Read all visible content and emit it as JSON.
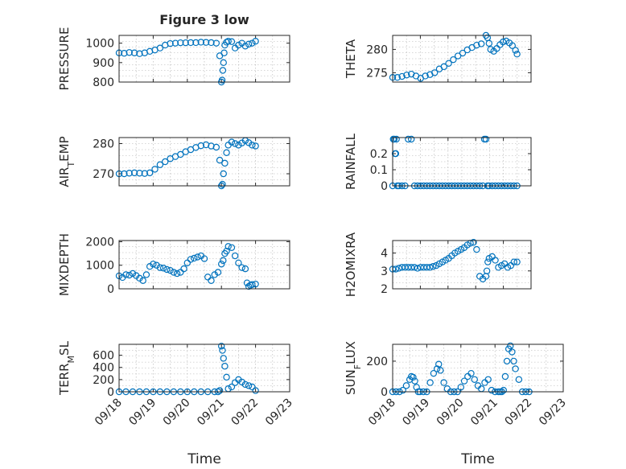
{
  "figure": {
    "title": "Figure 3 low",
    "marker_color": "#0072BD",
    "axes_color": "#262626"
  },
  "chart_data": [
    {
      "type": "scatter",
      "panel": 1,
      "ylabel": "PRESSURE",
      "ylim": [
        800,
        1040
      ],
      "yticks": [
        800,
        900,
        1000
      ],
      "ytick_labels": [
        "800",
        "900",
        "1000"
      ],
      "xlim": [
        0,
        5
      ],
      "grid": true,
      "x": [
        0.0,
        0.15,
        0.3,
        0.45,
        0.6,
        0.75,
        0.9,
        1.05,
        1.2,
        1.35,
        1.5,
        1.65,
        1.8,
        1.95,
        2.1,
        2.25,
        2.4,
        2.55,
        2.7,
        2.85,
        2.95,
        3.0,
        3.02,
        3.04,
        3.06,
        3.08,
        3.1,
        3.15,
        3.2,
        3.3,
        3.4,
        3.5,
        3.6,
        3.7,
        3.8,
        3.9,
        4.0
      ],
      "y": [
        950,
        948,
        952,
        950,
        946,
        950,
        958,
        965,
        975,
        990,
        998,
        1000,
        1002,
        1002,
        1003,
        1003,
        1005,
        1004,
        1003,
        1000,
        935,
        800,
        810,
        860,
        900,
        950,
        990,
        1005,
        1010,
        1008,
        975,
        990,
        1000,
        985,
        995,
        1000,
        1010
      ]
    },
    {
      "type": "scatter",
      "panel": 2,
      "ylabel": "THETA",
      "ylim": [
        273,
        283
      ],
      "yticks": [
        275,
        280
      ],
      "ytick_labels": [
        "275",
        "280"
      ],
      "xlim": [
        0,
        5
      ],
      "grid": true,
      "x": [
        0.0,
        0.15,
        0.3,
        0.45,
        0.6,
        0.75,
        0.9,
        1.05,
        1.2,
        1.35,
        1.5,
        1.65,
        1.8,
        1.95,
        2.1,
        2.25,
        2.4,
        2.55,
        2.7,
        2.85,
        3.0,
        3.05,
        3.1,
        3.15,
        3.25,
        3.35,
        3.45,
        3.55,
        3.65,
        3.75,
        3.85,
        3.95,
        4.0
      ],
      "y": [
        274.0,
        274.0,
        274.2,
        274.5,
        274.7,
        274.3,
        273.8,
        274.3,
        274.6,
        275.0,
        275.8,
        276.3,
        277.0,
        277.8,
        278.6,
        279.2,
        279.9,
        280.4,
        280.9,
        281.2,
        283.0,
        282.5,
        281.3,
        280.0,
        279.6,
        280.2,
        281.0,
        281.6,
        281.8,
        281.4,
        280.8,
        279.8,
        279.0
      ]
    },
    {
      "type": "scatter",
      "panel": 3,
      "ylabel": "AIR_TEMP",
      "ylim": [
        266,
        282
      ],
      "yticks": [
        270,
        280
      ],
      "ytick_labels": [
        "270",
        "280"
      ],
      "xlim": [
        0,
        5
      ],
      "grid": true,
      "x": [
        0.0,
        0.15,
        0.3,
        0.45,
        0.6,
        0.75,
        0.9,
        1.05,
        1.2,
        1.35,
        1.5,
        1.65,
        1.8,
        1.95,
        2.1,
        2.25,
        2.4,
        2.55,
        2.7,
        2.85,
        2.95,
        3.0,
        3.03,
        3.06,
        3.1,
        3.15,
        3.2,
        3.3,
        3.4,
        3.5,
        3.6,
        3.7,
        3.8,
        3.9,
        4.0
      ],
      "y": [
        270,
        270,
        270.2,
        270.3,
        270.2,
        270.1,
        270.3,
        271.5,
        273,
        274,
        275,
        275.7,
        276.4,
        277.3,
        278,
        278.7,
        279.3,
        279.6,
        279.2,
        278.8,
        274.5,
        266,
        266.5,
        270,
        273.5,
        277,
        279.5,
        280.5,
        280.0,
        279.5,
        280.2,
        281.0,
        280.3,
        279.5,
        279.2
      ]
    },
    {
      "type": "scatter",
      "panel": 4,
      "ylabel": "RAINFALL",
      "ylim": [
        0,
        0.3
      ],
      "yticks": [
        0,
        0.1,
        0.2
      ],
      "ytick_labels": [
        "0",
        "0.1",
        "0.2"
      ],
      "xlim": [
        0,
        5
      ],
      "grid": true,
      "x": [
        0.0,
        0.02,
        0.05,
        0.08,
        0.1,
        0.12,
        0.15,
        0.2,
        0.3,
        0.4,
        0.5,
        0.6,
        0.7,
        0.8,
        0.9,
        1.0,
        1.1,
        1.2,
        1.3,
        1.4,
        1.5,
        1.6,
        1.7,
        1.8,
        1.9,
        2.0,
        2.1,
        2.2,
        2.3,
        2.4,
        2.5,
        2.6,
        2.7,
        2.8,
        2.9,
        2.95,
        3.0,
        3.05,
        3.1,
        3.2,
        3.3,
        3.4,
        3.5,
        3.6,
        3.7,
        3.8,
        3.9,
        4.0
      ],
      "y": [
        0,
        0.29,
        0.29,
        0.2,
        0.2,
        0.29,
        0,
        0,
        0,
        0,
        0.29,
        0.29,
        0,
        0,
        0,
        0,
        0,
        0,
        0,
        0,
        0,
        0,
        0,
        0,
        0,
        0,
        0,
        0,
        0,
        0,
        0,
        0,
        0,
        0,
        0,
        0.29,
        0.29,
        0,
        0,
        0,
        0,
        0,
        0,
        0,
        0,
        0,
        0,
        0
      ]
    },
    {
      "type": "scatter",
      "panel": 5,
      "ylabel": "MIXDEPTH",
      "ylim": [
        0,
        2050
      ],
      "yticks": [
        0,
        1000,
        2000
      ],
      "ytick_labels": [
        "0",
        "1000",
        "2000"
      ],
      "xlim": [
        0,
        5
      ],
      "grid": true,
      "x": [
        0.0,
        0.1,
        0.2,
        0.3,
        0.4,
        0.5,
        0.6,
        0.7,
        0.8,
        0.9,
        1.0,
        1.1,
        1.2,
        1.3,
        1.4,
        1.5,
        1.6,
        1.7,
        1.8,
        1.9,
        2.0,
        2.1,
        2.2,
        2.3,
        2.4,
        2.5,
        2.6,
        2.7,
        2.8,
        2.9,
        3.0,
        3.05,
        3.1,
        3.15,
        3.2,
        3.3,
        3.4,
        3.5,
        3.6,
        3.7,
        3.75,
        3.8,
        3.85,
        3.9,
        4.0
      ],
      "y": [
        550,
        480,
        600,
        580,
        650,
        560,
        450,
        350,
        600,
        950,
        1050,
        1000,
        900,
        880,
        820,
        780,
        700,
        650,
        700,
        850,
        1100,
        1250,
        1300,
        1350,
        1400,
        1280,
        500,
        350,
        600,
        700,
        1050,
        1200,
        1500,
        1600,
        1800,
        1750,
        1400,
        1100,
        900,
        850,
        250,
        100,
        150,
        180,
        200
      ]
    },
    {
      "type": "scatter",
      "panel": 6,
      "ylabel": "H2OMIXRA",
      "ylim": [
        2,
        4.7
      ],
      "yticks": [
        2,
        3,
        4
      ],
      "ytick_labels": [
        "2",
        "3",
        "4"
      ],
      "xlim": [
        0,
        5
      ],
      "grid": true,
      "x": [
        0.0,
        0.1,
        0.2,
        0.3,
        0.4,
        0.5,
        0.6,
        0.7,
        0.8,
        0.9,
        1.0,
        1.1,
        1.2,
        1.3,
        1.4,
        1.5,
        1.6,
        1.7,
        1.8,
        1.9,
        2.0,
        2.1,
        2.2,
        2.3,
        2.4,
        2.5,
        2.6,
        2.7,
        2.8,
        2.9,
        3.0,
        3.03,
        3.06,
        3.1,
        3.2,
        3.3,
        3.4,
        3.5,
        3.6,
        3.7,
        3.8,
        3.9,
        4.0
      ],
      "y": [
        3.1,
        3.1,
        3.15,
        3.2,
        3.2,
        3.2,
        3.2,
        3.2,
        3.15,
        3.2,
        3.2,
        3.2,
        3.2,
        3.25,
        3.3,
        3.4,
        3.5,
        3.6,
        3.7,
        3.85,
        4.0,
        4.1,
        4.2,
        4.3,
        4.45,
        4.55,
        4.6,
        4.2,
        2.7,
        2.55,
        2.7,
        3.0,
        3.5,
        3.7,
        3.8,
        3.6,
        3.2,
        3.3,
        3.4,
        3.2,
        3.3,
        3.5,
        3.5
      ]
    },
    {
      "type": "scatter",
      "panel": 7,
      "ylabel": "TERR_MSL",
      "ylim": [
        0,
        780
      ],
      "yticks": [
        0,
        200,
        400,
        600
      ],
      "ytick_labels": [
        "0",
        "200",
        "400",
        "600"
      ],
      "xlim": [
        0,
        5
      ],
      "xticks": [
        0,
        1,
        2,
        3,
        4,
        5
      ],
      "xtick_labels": [
        "09/18",
        "09/19",
        "09/20",
        "09/21",
        "09/22",
        "09/23"
      ],
      "xlabel": "Time",
      "grid": true,
      "x": [
        0.0,
        0.2,
        0.4,
        0.6,
        0.8,
        1.0,
        1.2,
        1.4,
        1.6,
        1.8,
        2.0,
        2.2,
        2.4,
        2.6,
        2.8,
        2.9,
        2.95,
        3.0,
        3.03,
        3.06,
        3.1,
        3.15,
        3.2,
        3.3,
        3.4,
        3.5,
        3.6,
        3.7,
        3.8,
        3.9,
        4.0
      ],
      "y": [
        0,
        0,
        0,
        0,
        0,
        0,
        0,
        0,
        0,
        0,
        0,
        0,
        0,
        0,
        0,
        0,
        20,
        750,
        680,
        550,
        420,
        240,
        50,
        80,
        150,
        200,
        160,
        120,
        100,
        80,
        20
      ]
    },
    {
      "type": "scatter",
      "panel": 8,
      "ylabel": "SUN_FLUX",
      "ylim": [
        0,
        310
      ],
      "yticks": [
        0,
        200
      ],
      "ytick_labels": [
        "0",
        "200"
      ],
      "xlim": [
        0,
        5
      ],
      "xticks": [
        0,
        1,
        2,
        3,
        4,
        5
      ],
      "xtick_labels": [
        "09/18",
        "09/19",
        "09/20",
        "09/21",
        "09/22",
        "09/23"
      ],
      "xlabel": "Time",
      "grid": true,
      "x": [
        0.0,
        0.1,
        0.2,
        0.3,
        0.4,
        0.5,
        0.55,
        0.6,
        0.65,
        0.7,
        0.75,
        0.8,
        0.9,
        1.0,
        1.1,
        1.2,
        1.3,
        1.35,
        1.4,
        1.5,
        1.6,
        1.7,
        1.8,
        1.9,
        2.0,
        2.1,
        2.2,
        2.3,
        2.4,
        2.5,
        2.6,
        2.7,
        2.8,
        2.9,
        3.0,
        3.1,
        3.15,
        3.2,
        3.25,
        3.3,
        3.35,
        3.4,
        3.45,
        3.5,
        3.55,
        3.6,
        3.7,
        3.8,
        3.9,
        4.0
      ],
      "y": [
        0,
        0,
        0,
        10,
        40,
        80,
        100,
        95,
        70,
        30,
        0,
        0,
        0,
        0,
        60,
        120,
        150,
        180,
        140,
        60,
        20,
        0,
        0,
        0,
        30,
        70,
        100,
        120,
        80,
        40,
        20,
        60,
        80,
        10,
        0,
        0,
        0,
        0,
        10,
        100,
        200,
        280,
        300,
        260,
        200,
        150,
        80,
        0,
        0,
        0
      ]
    }
  ]
}
